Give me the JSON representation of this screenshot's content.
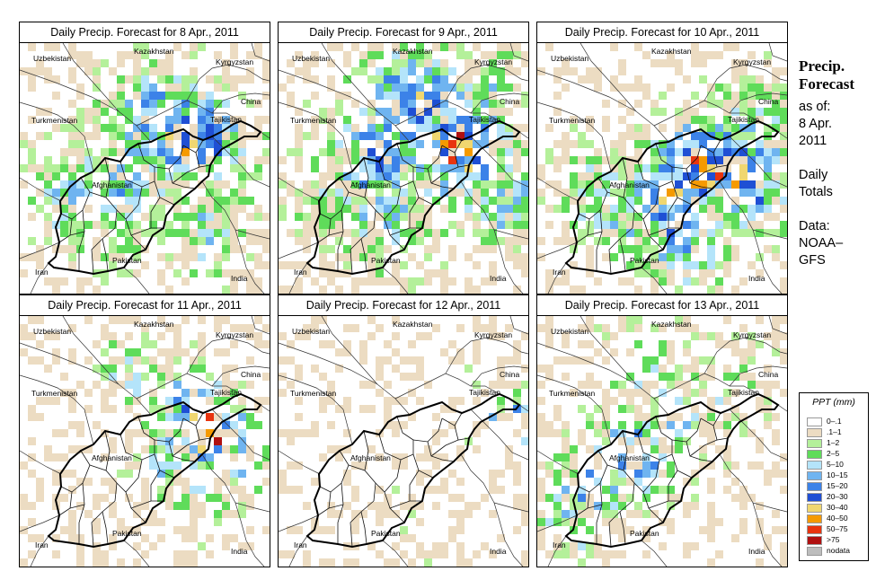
{
  "side": {
    "title_line1": "Precip.",
    "title_line2": "Forecast",
    "asof": "as of:",
    "date_line1": "8 Apr.",
    "date_line2": "2011",
    "daily_line1": "Daily",
    "daily_line2": "Totals",
    "data_line1": "Data:",
    "data_line2": "NOAA–",
    "data_line3": "GFS"
  },
  "legend": {
    "title": "PPT (mm)",
    "items": [
      {
        "label": "0–.1",
        "color": "#ffffff"
      },
      {
        "label": ".1–1",
        "color": "#ecdcc2"
      },
      {
        "label": "1–2",
        "color": "#b4f09a"
      },
      {
        "label": "2–5",
        "color": "#5fdc5a"
      },
      {
        "label": "5–10",
        "color": "#b4e4fa"
      },
      {
        "label": "10–15",
        "color": "#6fb4f0"
      },
      {
        "label": "15–20",
        "color": "#3c82e8"
      },
      {
        "label": "20–30",
        "color": "#1f4fd4"
      },
      {
        "label": "30–40",
        "color": "#f0d770"
      },
      {
        "label": "40–50",
        "color": "#f59a00"
      },
      {
        "label": "50–75",
        "color": "#e8340f"
      },
      {
        "label": ">75",
        "color": "#b01010"
      },
      {
        "label": "nodata",
        "color": "#bdbdbd"
      }
    ]
  },
  "panels": [
    {
      "title": "Daily Precip. Forecast for  8 Apr., 2011",
      "seed": 11,
      "mode": "wet1"
    },
    {
      "title": "Daily Precip. Forecast for  9 Apr., 2011",
      "seed": 23,
      "mode": "wet2"
    },
    {
      "title": "Daily Precip. Forecast for  10 Apr., 2011",
      "seed": 37,
      "mode": "wet3"
    },
    {
      "title": "Daily Precip. Forecast for  11 Apr., 2011",
      "seed": 41,
      "mode": "mid"
    },
    {
      "title": "Daily Precip. Forecast for  12 Apr., 2011",
      "seed": 53,
      "mode": "dry"
    },
    {
      "title": "Daily Precip. Forecast for  13 Apr., 2011",
      "seed": 67,
      "mode": "light"
    }
  ],
  "countries": {
    "kazakhstan": "Kazakhstan",
    "uzbekistan": "Uzbekistan",
    "kyrgyzstan": "Kyrgyzstan",
    "china": "China",
    "turkmenistan": "Turkmenistan",
    "tajikistan": "Tajikistan",
    "afghanistan": "Afghanistan",
    "pakistan": "Pakistan",
    "iran": "Iran",
    "india": "India"
  }
}
